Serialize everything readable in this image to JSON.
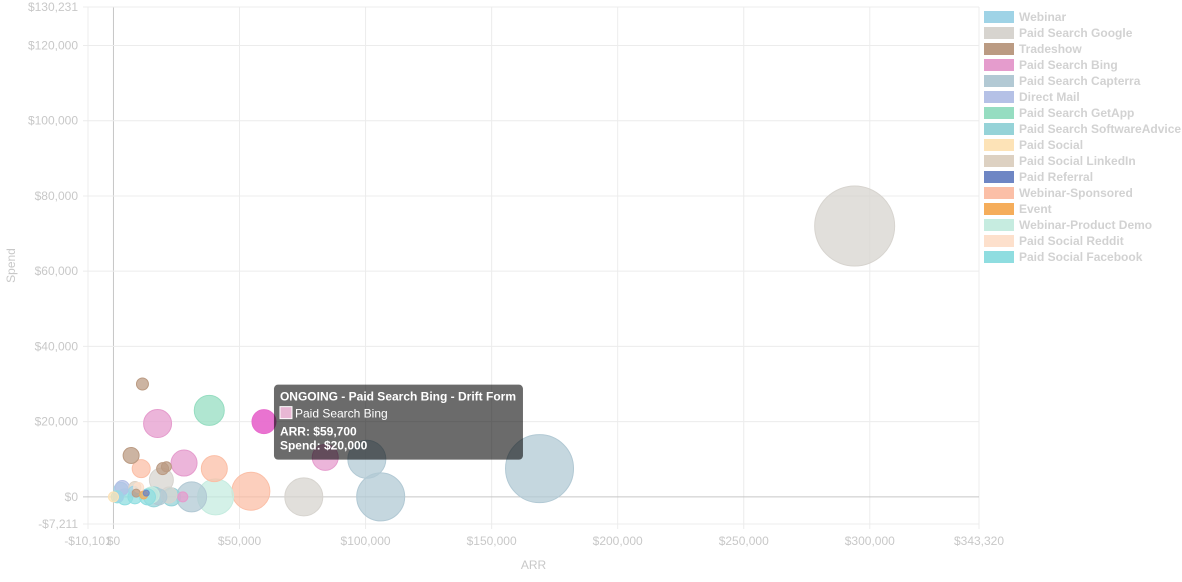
{
  "chart_data": {
    "type": "scatter",
    "xlabel": "ARR",
    "ylabel": "Spend",
    "xlim": [
      -10101,
      343320
    ],
    "ylim": [
      -7211,
      130231
    ],
    "x_ticks": [
      -10101,
      0,
      50000,
      100000,
      150000,
      200000,
      250000,
      300000,
      343320
    ],
    "x_tick_labels": [
      "-$10,101",
      "$0",
      "$50,000",
      "$100,000",
      "$150,000",
      "$200,000",
      "$250,000",
      "$300,000",
      "$343,320"
    ],
    "y_ticks": [
      -7211,
      0,
      20000,
      40000,
      60000,
      80000,
      100000,
      120000,
      130231
    ],
    "y_tick_labels": [
      "-$7,211",
      "$0",
      "$20,000",
      "$40,000",
      "$60,000",
      "$80,000",
      "$100,000",
      "$120,000",
      "$130,231"
    ],
    "grid": true,
    "legend_position": "right",
    "series": [
      {
        "name": "Webinar",
        "color": "#9fd3e6",
        "points": [
          {
            "x": 3000,
            "y": 2000,
            "r": 7
          },
          {
            "x": 8000,
            "y": 1500,
            "r": 5
          },
          {
            "x": 2000,
            "y": 0,
            "r": 5
          }
        ]
      },
      {
        "name": "Paid Search Google",
        "color": "#d7d4cf",
        "points": [
          {
            "x": 294000,
            "y": 72000,
            "r": 40
          },
          {
            "x": 75500,
            "y": 0,
            "r": 19
          },
          {
            "x": 19000,
            "y": 4500,
            "r": 12
          },
          {
            "x": 22000,
            "y": 500,
            "r": 8
          }
        ]
      },
      {
        "name": "Tradeshow",
        "color": "#bb9b83",
        "points": [
          {
            "x": 11500,
            "y": 30000,
            "r": 6
          },
          {
            "x": 7000,
            "y": 11000,
            "r": 8
          },
          {
            "x": 19500,
            "y": 7500,
            "r": 6
          },
          {
            "x": 21000,
            "y": 8000,
            "r": 5
          },
          {
            "x": 9000,
            "y": 1000,
            "r": 4
          }
        ]
      },
      {
        "name": "Paid Search Bing",
        "color": "#e59ccd",
        "points": [
          {
            "x": 59700,
            "y": 20000,
            "r": 12
          },
          {
            "x": 17500,
            "y": 19500,
            "r": 14
          },
          {
            "x": 28000,
            "y": 9000,
            "r": 13
          },
          {
            "x": 84000,
            "y": 10500,
            "r": 13
          },
          {
            "x": 27500,
            "y": 0,
            "r": 5
          }
        ]
      },
      {
        "name": "Paid Search Capterra",
        "color": "#b2c9d4",
        "points": [
          {
            "x": 169000,
            "y": 7500,
            "r": 34
          },
          {
            "x": 100500,
            "y": 10000,
            "r": 19
          },
          {
            "x": 106000,
            "y": 0,
            "r": 24
          },
          {
            "x": 31000,
            "y": 0,
            "r": 15
          },
          {
            "x": 18000,
            "y": 0,
            "r": 8
          }
        ]
      },
      {
        "name": "Direct Mail",
        "color": "#b5c1e6",
        "points": [
          {
            "x": 3500,
            "y": 2500,
            "r": 7
          }
        ]
      },
      {
        "name": "Paid Search GetApp",
        "color": "#96ddc1",
        "points": [
          {
            "x": 38000,
            "y": 23000,
            "r": 15
          }
        ]
      },
      {
        "name": "Paid Search SoftwareAdvice",
        "color": "#96d3d8",
        "points": [
          {
            "x": 16000,
            "y": 0,
            "r": 10
          },
          {
            "x": 23000,
            "y": 0,
            "r": 9
          }
        ]
      },
      {
        "name": "Paid Social",
        "color": "#fde3b7",
        "points": [
          {
            "x": 0,
            "y": 0,
            "r": 5
          }
        ]
      },
      {
        "name": "Paid Social LinkedIn",
        "color": "#ddd1c2",
        "points": [
          {
            "x": 8500,
            "y": 2500,
            "r": 6
          }
        ]
      },
      {
        "name": "Paid Referral",
        "color": "#6e86c4",
        "points": [
          {
            "x": 13000,
            "y": 1000,
            "r": 3
          }
        ]
      },
      {
        "name": "Webinar-Sponsored",
        "color": "#fbbfa7",
        "points": [
          {
            "x": 54500,
            "y": 1500,
            "r": 19
          },
          {
            "x": 40000,
            "y": 7500,
            "r": 13
          },
          {
            "x": 11000,
            "y": 7500,
            "r": 9
          }
        ]
      },
      {
        "name": "Event",
        "color": "#f5ad5b",
        "points": [
          {
            "x": 12000,
            "y": 500,
            "r": 4
          }
        ]
      },
      {
        "name": "Webinar-Product Demo",
        "color": "#c6ece0",
        "points": [
          {
            "x": 40500,
            "y": 0,
            "r": 18
          },
          {
            "x": 15000,
            "y": 500,
            "r": 8
          }
        ]
      },
      {
        "name": "Paid Social Reddit",
        "color": "#fde0cc",
        "points": [
          {
            "x": 10000,
            "y": 2500,
            "r": 5
          }
        ]
      },
      {
        "name": "Paid Social Facebook",
        "color": "#8fdde0",
        "points": [
          {
            "x": 4500,
            "y": 0,
            "r": 8
          },
          {
            "x": 8500,
            "y": 0,
            "r": 7
          },
          {
            "x": 13500,
            "y": 0,
            "r": 8
          },
          {
            "x": 1500,
            "y": 0,
            "r": 6
          }
        ]
      }
    ],
    "highlight": {
      "series": "Paid Search Bing",
      "point_index": 0,
      "color": "#e86ccd"
    },
    "tooltip": {
      "title": "ONGOING - Paid Search Bing - Drift Form",
      "series_label": "Paid Search Bing",
      "swatch_color": "#e8b7d4",
      "arr_text": "ARR: $59,700",
      "spend_text": "Spend: $20,000"
    }
  }
}
